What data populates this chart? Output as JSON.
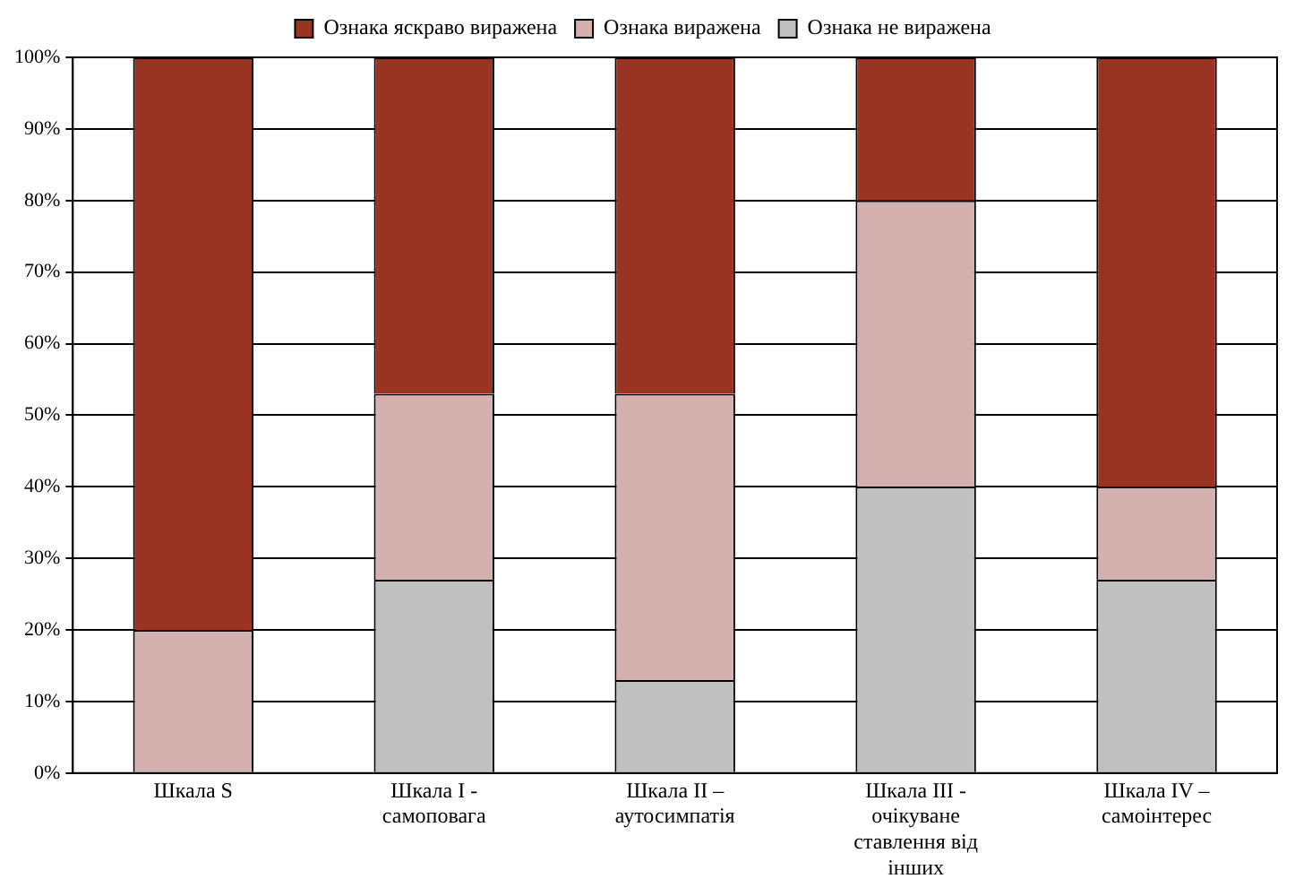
{
  "chart_data": {
    "type": "bar",
    "stacked": true,
    "categories": [
      "Шкала S",
      "Шкала I - самоповага",
      "Шкала II – аутосимпатія",
      "Шкала III - очікуване ставлення від інших",
      "Шкала IV – самоінтерес"
    ],
    "series": [
      {
        "name": "Ознака не виражена",
        "color": "#c0c0c0",
        "values": [
          0,
          27,
          13,
          40,
          27
        ]
      },
      {
        "name": "Ознака виражена",
        "color": "#d4b0ae",
        "values": [
          20,
          26,
          40,
          40,
          13
        ]
      },
      {
        "name": "Ознака яскраво виражена",
        "color": "#993322",
        "values": [
          80,
          47,
          47,
          20,
          60
        ]
      }
    ],
    "ylim": [
      0,
      100
    ],
    "yticks": [
      {
        "value": 0,
        "label": "0%"
      },
      {
        "value": 10,
        "label": "10%"
      },
      {
        "value": 20,
        "label": "20%"
      },
      {
        "value": 30,
        "label": "30%"
      },
      {
        "value": 40,
        "label": "40%"
      },
      {
        "value": 50,
        "label": "50%"
      },
      {
        "value": 60,
        "label": "60%"
      },
      {
        "value": 70,
        "label": "70%"
      },
      {
        "value": 80,
        "label": "80%"
      },
      {
        "value": 90,
        "label": "90%"
      },
      {
        "value": 100,
        "label": "100%"
      }
    ],
    "grid": "y",
    "legend": "top"
  }
}
